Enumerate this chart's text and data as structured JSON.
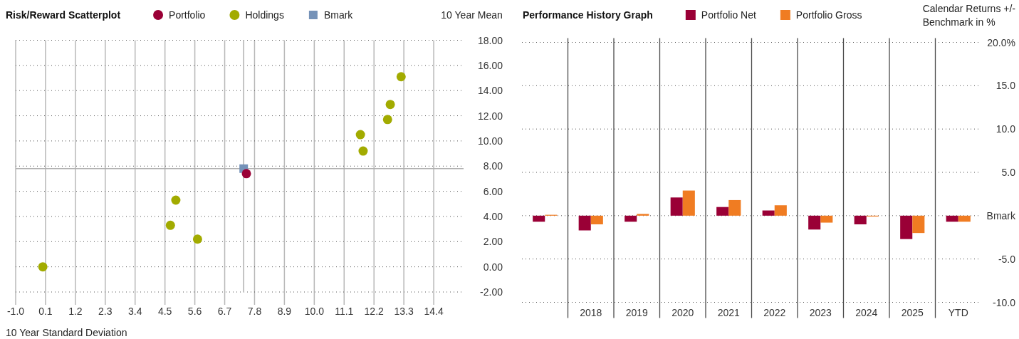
{
  "chart_data": [
    {
      "type": "scatter",
      "title": "Risk/Reward Scatterplot",
      "xlabel": "10 Year Standard Deviation",
      "ylabel": "10 Year Mean",
      "legend": "top",
      "grid": true,
      "series": [
        {
          "name": "Portfolio",
          "color": "#9a0036",
          "marker": "circle",
          "x": [
            7.5
          ],
          "values": [
            7.4
          ]
        },
        {
          "name": "Holdings",
          "color": "#a2ab00",
          "marker": "circle",
          "x": [
            0.0,
            4.7,
            4.9,
            5.7,
            11.7,
            11.8,
            12.7,
            12.8,
            13.2
          ],
          "values": [
            0.0,
            3.3,
            5.3,
            2.2,
            10.5,
            9.2,
            11.7,
            12.9,
            15.1
          ]
        },
        {
          "name": "Bmark",
          "color": "#7592b8",
          "marker": "square",
          "x": [
            7.4
          ],
          "values": [
            7.8
          ]
        }
      ],
      "xlim": [
        -1.0,
        15.5
      ],
      "xticks": [
        {
          "value": -1.0,
          "label": "-1.0"
        },
        0.1,
        1.2,
        2.3,
        3.4,
        4.5,
        5.6,
        6.7,
        7.8,
        8.9,
        {
          "value": 10.0,
          "label": "10.0"
        },
        11.1,
        12.2,
        13.3,
        14.4
      ],
      "ylim": [
        -2,
        18
      ],
      "yticks": [
        {
          "value": -2,
          "label": "-2.00"
        },
        {
          "value": 0,
          "label": "0.00"
        },
        {
          "value": 2,
          "label": "2.00"
        },
        {
          "value": 4,
          "label": "4.00"
        },
        {
          "value": 6,
          "label": "6.00"
        },
        {
          "value": 8,
          "label": "8.00"
        },
        {
          "value": 10,
          "label": "10.00"
        },
        {
          "value": 12,
          "label": "12.00"
        },
        {
          "value": 14,
          "label": "14.00"
        },
        {
          "value": 16,
          "label": "16.00"
        },
        {
          "value": 18,
          "label": "18.00"
        }
      ],
      "ref_lines": [
        {
          "axis": "x",
          "value": 7.4,
          "color": "#b0b0b0"
        },
        {
          "axis": "y",
          "value": 7.8,
          "color": "#b0b0b0"
        }
      ]
    },
    {
      "type": "bar",
      "title": "Performance History Graph",
      "ylabel": "Calendar Returns +/- Benchmark in %",
      "legend": "top",
      "grid": true,
      "categories": [
        null,
        "2018",
        "2019",
        "2020",
        "2021",
        "2022",
        "2023",
        "2024",
        "2025",
        "YTD"
      ],
      "series": [
        {
          "name": "Portfolio Net",
          "color": "#9a0036",
          "values": [
            -0.7,
            -1.7,
            -0.7,
            2.1,
            1.0,
            0.6,
            -1.6,
            -1.0,
            -2.7,
            -0.7
          ]
        },
        {
          "name": "Portfolio Gross",
          "color": "#f07c22",
          "values": [
            0.1,
            -1.0,
            0.2,
            2.9,
            1.8,
            1.2,
            -0.8,
            -0.1,
            -2.0,
            -0.7
          ]
        }
      ],
      "ylim": [
        -10,
        20
      ],
      "yticks": [
        {
          "value": -10,
          "label": "-10.0"
        },
        {
          "value": -5,
          "label": "-5.0"
        },
        {
          "value": 0,
          "label": "Bmark"
        },
        {
          "value": 5,
          "label": "5.0"
        },
        {
          "value": 10,
          "label": "10.0"
        },
        {
          "value": 15,
          "label": "15.0"
        },
        {
          "value": 20,
          "label": "20.0%"
        }
      ]
    }
  ]
}
